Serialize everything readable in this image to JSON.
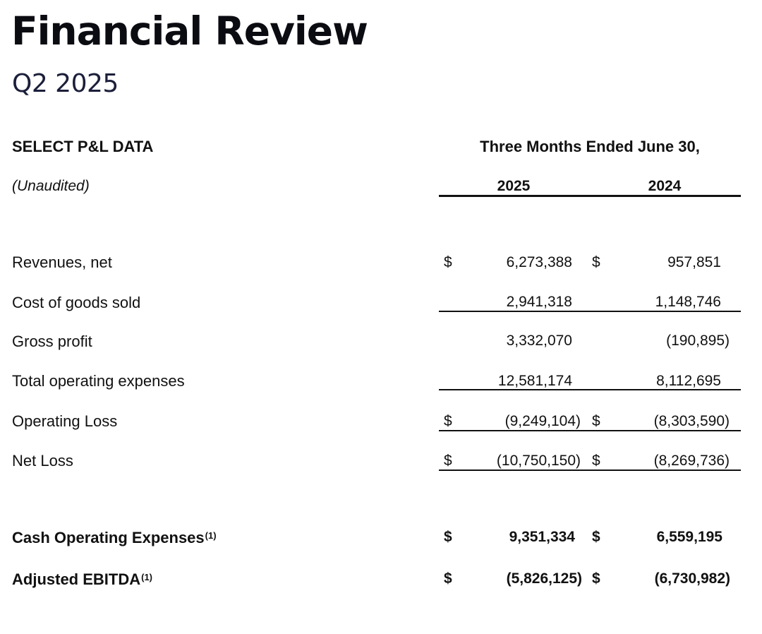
{
  "header": {
    "title": "Financial Review",
    "subtitle": "Q2 2025"
  },
  "table": {
    "section_title": "SELECT P&L DATA",
    "note": "(Unaudited)",
    "period_header": "Three Months Ended June 30,",
    "years": [
      "2025",
      "2024"
    ],
    "currency_symbol": "$",
    "rows": [
      {
        "label": "Revenues, net",
        "v2025": "6,273,388",
        "v2024": "957,851"
      },
      {
        "label": "Cost of goods sold",
        "v2025": "2,941,318",
        "v2024": "1,148,746"
      },
      {
        "label": "Gross profit",
        "v2025": "3,332,070",
        "v2024": "(190,895)"
      },
      {
        "label": "Total operating expenses",
        "v2025": "12,581,174",
        "v2024": "8,112,695"
      },
      {
        "label": "Operating Loss",
        "v2025": "(9,249,104)",
        "v2024": "(8,303,590)"
      },
      {
        "label": "Net Loss",
        "v2025": "(10,750,150)",
        "v2024": "(8,269,736)"
      }
    ],
    "non_gaap": [
      {
        "label": "Cash Operating Expenses",
        "footnote": "(1)",
        "v2025": "9,351,334",
        "v2024": "6,559,195"
      },
      {
        "label": "Adjusted EBITDA",
        "footnote": "(1)",
        "v2025": "(5,826,125)",
        "v2024": "(6,730,982)"
      }
    ]
  }
}
